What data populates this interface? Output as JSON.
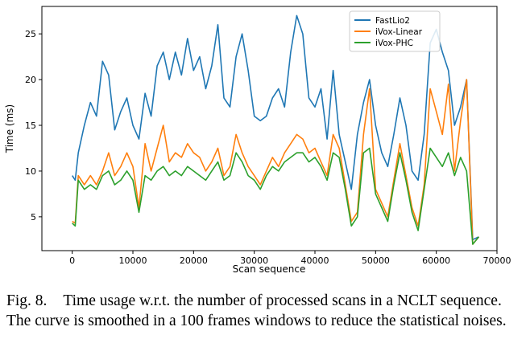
{
  "chart_data": {
    "type": "line",
    "title": "",
    "xlabel": "Scan sequence",
    "ylabel": "Time (ms)",
    "xlim": [
      -5000,
      70000
    ],
    "ylim": [
      1.3,
      28
    ],
    "xticks": [
      0,
      10000,
      20000,
      30000,
      40000,
      50000,
      60000,
      70000
    ],
    "yticks": [
      5,
      10,
      15,
      20,
      25
    ],
    "legend_position": "top-right",
    "series": [
      {
        "name": "FastLio2",
        "color": "#1f77b4",
        "x": [
          0,
          500,
          1000,
          2000,
          3000,
          4000,
          5000,
          6000,
          7000,
          8000,
          9000,
          10000,
          11000,
          12000,
          13000,
          14000,
          15000,
          16000,
          17000,
          18000,
          19000,
          20000,
          21000,
          22000,
          23000,
          24000,
          25000,
          26000,
          27000,
          28000,
          29000,
          30000,
          31000,
          32000,
          33000,
          34000,
          35000,
          36000,
          37000,
          38000,
          39000,
          40000,
          41000,
          42000,
          43000,
          44000,
          45000,
          46000,
          47000,
          48000,
          49000,
          50000,
          51000,
          52000,
          53000,
          54000,
          55000,
          56000,
          57000,
          58000,
          59000,
          60000,
          61000,
          62000,
          63000,
          64000,
          65000,
          66000,
          67000
        ],
        "y": [
          9.5,
          9.0,
          12.0,
          15.0,
          17.5,
          16.0,
          22.0,
          20.5,
          14.5,
          16.5,
          18.0,
          15.0,
          13.5,
          18.5,
          16.0,
          21.5,
          23.0,
          20.0,
          23.0,
          20.5,
          24.5,
          21.0,
          22.5,
          19.0,
          21.5,
          26.0,
          18.0,
          17.0,
          22.5,
          25.0,
          21.0,
          16.0,
          15.5,
          16.0,
          18.0,
          19.0,
          17.0,
          23.0,
          27.0,
          25.0,
          18.0,
          17.0,
          19.0,
          13.5,
          21.0,
          14.0,
          11.0,
          8.0,
          14.0,
          17.5,
          20.0,
          15.0,
          12.0,
          10.5,
          14.0,
          18.0,
          15.0,
          10.0,
          9.0,
          14.0,
          24.0,
          25.5,
          23.0,
          21.0,
          15.0,
          17.0,
          20.0,
          2.5,
          2.8
        ]
      },
      {
        "name": "iVox-Linear",
        "color": "#ff7f0e",
        "x": [
          0,
          500,
          1000,
          2000,
          3000,
          4000,
          5000,
          6000,
          7000,
          8000,
          9000,
          10000,
          11000,
          12000,
          13000,
          14000,
          15000,
          16000,
          17000,
          18000,
          19000,
          20000,
          21000,
          22000,
          23000,
          24000,
          25000,
          26000,
          27000,
          28000,
          29000,
          30000,
          31000,
          32000,
          33000,
          34000,
          35000,
          36000,
          37000,
          38000,
          39000,
          40000,
          41000,
          42000,
          43000,
          44000,
          45000,
          46000,
          47000,
          48000,
          49000,
          50000,
          51000,
          52000,
          53000,
          54000,
          55000,
          56000,
          57000,
          58000,
          59000,
          60000,
          61000,
          62000,
          63000,
          64000,
          65000,
          66000,
          67000
        ],
        "y": [
          4.5,
          4.3,
          9.5,
          8.5,
          9.5,
          8.5,
          10.0,
          12.0,
          9.5,
          10.5,
          12.0,
          10.5,
          6.0,
          13.0,
          10.0,
          12.5,
          15.0,
          11.0,
          12.0,
          11.5,
          13.0,
          12.0,
          11.5,
          10.0,
          11.0,
          12.5,
          9.5,
          10.5,
          14.0,
          12.0,
          10.5,
          9.5,
          8.5,
          10.0,
          11.5,
          10.5,
          12.0,
          13.0,
          14.0,
          13.5,
          12.0,
          12.5,
          11.0,
          9.5,
          14.0,
          12.5,
          8.5,
          4.5,
          5.5,
          14.0,
          19.0,
          8.0,
          6.5,
          5.0,
          9.0,
          13.0,
          9.5,
          6.0,
          4.0,
          8.5,
          19.0,
          16.5,
          14.0,
          19.5,
          10.0,
          15.5,
          20.0,
          2.0,
          2.8
        ]
      },
      {
        "name": "iVox-PHC",
        "color": "#2ca02c",
        "x": [
          0,
          500,
          1000,
          2000,
          3000,
          4000,
          5000,
          6000,
          7000,
          8000,
          9000,
          10000,
          11000,
          12000,
          13000,
          14000,
          15000,
          16000,
          17000,
          18000,
          19000,
          20000,
          21000,
          22000,
          23000,
          24000,
          25000,
          26000,
          27000,
          28000,
          29000,
          30000,
          31000,
          32000,
          33000,
          34000,
          35000,
          36000,
          37000,
          38000,
          39000,
          40000,
          41000,
          42000,
          43000,
          44000,
          45000,
          46000,
          47000,
          48000,
          49000,
          50000,
          51000,
          52000,
          53000,
          54000,
          55000,
          56000,
          57000,
          58000,
          59000,
          60000,
          61000,
          62000,
          63000,
          64000,
          65000,
          66000,
          67000
        ],
        "y": [
          4.3,
          4.0,
          9.0,
          8.0,
          8.5,
          8.0,
          9.5,
          10.0,
          8.5,
          9.0,
          10.0,
          9.0,
          5.5,
          9.5,
          9.0,
          10.0,
          10.5,
          9.5,
          10.0,
          9.5,
          10.5,
          10.0,
          9.5,
          9.0,
          10.0,
          11.0,
          9.0,
          9.5,
          12.0,
          11.0,
          9.5,
          9.0,
          8.0,
          9.5,
          10.5,
          10.0,
          11.0,
          11.5,
          12.0,
          12.0,
          11.0,
          11.5,
          10.5,
          9.0,
          12.0,
          11.5,
          8.0,
          4.0,
          5.0,
          12.0,
          12.5,
          7.5,
          6.0,
          4.5,
          8.5,
          12.0,
          9.0,
          5.5,
          3.5,
          8.0,
          12.5,
          11.5,
          10.5,
          12.0,
          9.5,
          11.5,
          10.0,
          2.0,
          2.8
        ]
      }
    ]
  },
  "caption": {
    "label": "Fig. 8.",
    "text": "Time usage w.r.t. the number of processed scans in a NCLT sequence. The curve is smoothed in a 100 frames windows to reduce the statistical noises."
  }
}
